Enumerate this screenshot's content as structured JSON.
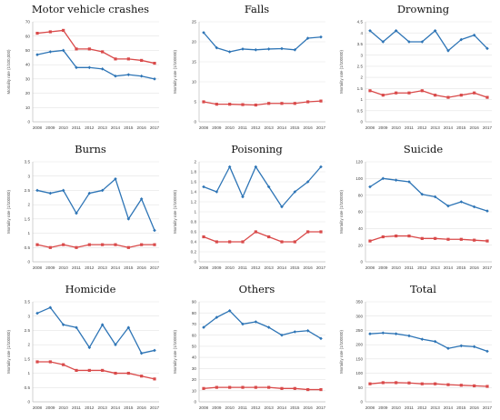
{
  "colors": {
    "blue": "#2e75b6",
    "red": "#d94a4a",
    "grid": "#e3e3e3",
    "axis": "#bfbfbf"
  },
  "chart_data": [
    {
      "type": "line",
      "title": "Motor vehicle crashes",
      "ylabel": "Mortality rate (1/100,000)",
      "ylim": [
        0,
        70
      ],
      "yticks": [
        "0",
        "10",
        "20",
        "30",
        "40",
        "50",
        "60",
        "70"
      ],
      "x": [
        "2008",
        "2009",
        "2010",
        "2011",
        "2012",
        "2013",
        "2014",
        "2015",
        "2016",
        "2017"
      ],
      "series": [
        {
          "color": "blue",
          "values": [
            47,
            49,
            50,
            38,
            38,
            37,
            32,
            33,
            32,
            30
          ]
        },
        {
          "color": "red",
          "values": [
            62,
            63,
            64,
            51,
            51,
            49,
            44,
            44,
            43,
            41
          ]
        }
      ]
    },
    {
      "type": "line",
      "title": "Falls",
      "ylabel": "Mortality rate (1/100000)",
      "ylim": [
        0,
        25
      ],
      "yticks": [
        "0",
        "5",
        "10",
        "15",
        "20",
        "25"
      ],
      "x": [
        "2008",
        "2009",
        "2010",
        "2011",
        "2012",
        "2013",
        "2014",
        "2015",
        "2016",
        "2017"
      ],
      "series": [
        {
          "color": "blue",
          "values": [
            22.3,
            18.5,
            17.5,
            18.2,
            18,
            18.2,
            18.3,
            18,
            20.9,
            21.2
          ]
        },
        {
          "color": "red",
          "values": [
            5,
            4.4,
            4.4,
            4.3,
            4.2,
            4.6,
            4.6,
            4.6,
            5,
            5.2
          ]
        }
      ]
    },
    {
      "type": "line",
      "title": "Drowning",
      "ylabel": "Mortality rate (1/100000)",
      "ylim": [
        0,
        4.5
      ],
      "yticks": [
        "0",
        "0.5",
        "1",
        "1.5",
        "2",
        "2.5",
        "3",
        "3.5",
        "4",
        "4.5"
      ],
      "x": [
        "2008",
        "2009",
        "2010",
        "2011",
        "2012",
        "2013",
        "2014",
        "2015",
        "2016",
        "2017"
      ],
      "series": [
        {
          "color": "blue",
          "values": [
            4.1,
            3.6,
            4.1,
            3.6,
            3.6,
            4.1,
            3.2,
            3.7,
            3.9,
            3.3
          ]
        },
        {
          "color": "red",
          "values": [
            1.4,
            1.2,
            1.3,
            1.3,
            1.4,
            1.2,
            1.1,
            1.2,
            1.3,
            1.1
          ]
        }
      ]
    },
    {
      "type": "line",
      "title": "Burns",
      "ylabel": "Mortality rate (1/100000)",
      "ylim": [
        0,
        3.5
      ],
      "yticks": [
        "0",
        "0.5",
        "1",
        "1.5",
        "2",
        "2.5",
        "3",
        "3.5"
      ],
      "x": [
        "2008",
        "2009",
        "2010",
        "2011",
        "2012",
        "2013",
        "2014",
        "2015",
        "2016",
        "2017"
      ],
      "series": [
        {
          "color": "blue",
          "values": [
            2.5,
            2.4,
            2.5,
            1.7,
            2.4,
            2.5,
            2.9,
            1.5,
            2.2,
            1.1
          ]
        },
        {
          "color": "red",
          "values": [
            0.6,
            0.5,
            0.6,
            0.5,
            0.6,
            0.6,
            0.6,
            0.5,
            0.6,
            0.6
          ]
        }
      ]
    },
    {
      "type": "line",
      "title": "Poisoning",
      "ylabel": "Mortality rate (1/100000)",
      "ylim": [
        0,
        2
      ],
      "yticks": [
        "0",
        "0.2",
        "0.4",
        "0.6",
        "0.8",
        "1",
        "1.2",
        "1.4",
        "1.6",
        "1.8",
        "2"
      ],
      "x": [
        "2008",
        "2009",
        "2010",
        "2011",
        "2012",
        "2013",
        "2014",
        "2015",
        "2016",
        "2017"
      ],
      "series": [
        {
          "color": "blue",
          "values": [
            1.5,
            1.4,
            1.9,
            1.3,
            1.9,
            1.5,
            1.1,
            1.4,
            1.6,
            1.9
          ]
        },
        {
          "color": "red",
          "values": [
            0.5,
            0.4,
            0.4,
            0.4,
            0.6,
            0.5,
            0.4,
            0.4,
            0.6,
            0.6
          ]
        }
      ]
    },
    {
      "type": "line",
      "title": "Suicide",
      "ylabel": "Mortality rate (1/100000)",
      "ylim": [
        0,
        120
      ],
      "yticks": [
        "0",
        "20",
        "40",
        "60",
        "80",
        "100",
        "120"
      ],
      "x": [
        "2008",
        "2009",
        "2010",
        "2011",
        "2012",
        "2013",
        "2014",
        "2015",
        "2016",
        "2017"
      ],
      "series": [
        {
          "color": "blue",
          "values": [
            90,
            100,
            98,
            96,
            81,
            78,
            67,
            72,
            66,
            61
          ]
        },
        {
          "color": "red",
          "values": [
            25,
            30,
            31,
            31,
            28,
            28,
            27,
            27,
            26,
            25
          ]
        }
      ]
    },
    {
      "type": "line",
      "title": "Homicide",
      "ylabel": "Mortality rate (1/100000)",
      "ylim": [
        0,
        3.5
      ],
      "yticks": [
        "0",
        "0.5",
        "1",
        "1.5",
        "2",
        "2.5",
        "3",
        "3.5"
      ],
      "x": [
        "2008",
        "2009",
        "2010",
        "2011",
        "2012",
        "2013",
        "2014",
        "2015",
        "2016",
        "2017"
      ],
      "series": [
        {
          "color": "blue",
          "values": [
            3.1,
            3.3,
            2.7,
            2.6,
            1.9,
            2.7,
            2.0,
            2.6,
            1.7,
            1.8
          ]
        },
        {
          "color": "red",
          "values": [
            1.4,
            1.4,
            1.3,
            1.1,
            1.1,
            1.1,
            1.0,
            1.0,
            0.9,
            0.8
          ]
        }
      ]
    },
    {
      "type": "line",
      "title": "Others",
      "ylabel": "Mortality rate (1/100000)",
      "ylim": [
        0,
        90
      ],
      "yticks": [
        "0",
        "10",
        "20",
        "30",
        "40",
        "50",
        "60",
        "70",
        "80",
        "90"
      ],
      "x": [
        "2008",
        "2009",
        "2010",
        "2011",
        "2012",
        "2013",
        "2014",
        "2015",
        "2016",
        "2017"
      ],
      "series": [
        {
          "color": "blue",
          "values": [
            67,
            76,
            82,
            70,
            72,
            67,
            60,
            63,
            64,
            57
          ]
        },
        {
          "color": "red",
          "values": [
            12,
            13,
            13,
            13,
            13,
            13,
            12,
            12,
            11,
            11
          ]
        }
      ]
    },
    {
      "type": "line",
      "title": "Total",
      "ylabel": "Mortality rate (1/100000)",
      "ylim": [
        0,
        350
      ],
      "yticks": [
        "0",
        "50",
        "100",
        "150",
        "200",
        "250",
        "300",
        "350"
      ],
      "x": [
        "2008",
        "2009",
        "2010",
        "2011",
        "2012",
        "2013",
        "2014",
        "2015",
        "2016",
        "2017"
      ],
      "series": [
        {
          "color": "blue",
          "values": [
            238,
            241,
            238,
            231,
            219,
            211,
            187,
            196,
            193,
            177
          ]
        },
        {
          "color": "red",
          "values": [
            63,
            67,
            67,
            66,
            63,
            63,
            60,
            58,
            56,
            54
          ]
        }
      ]
    }
  ]
}
